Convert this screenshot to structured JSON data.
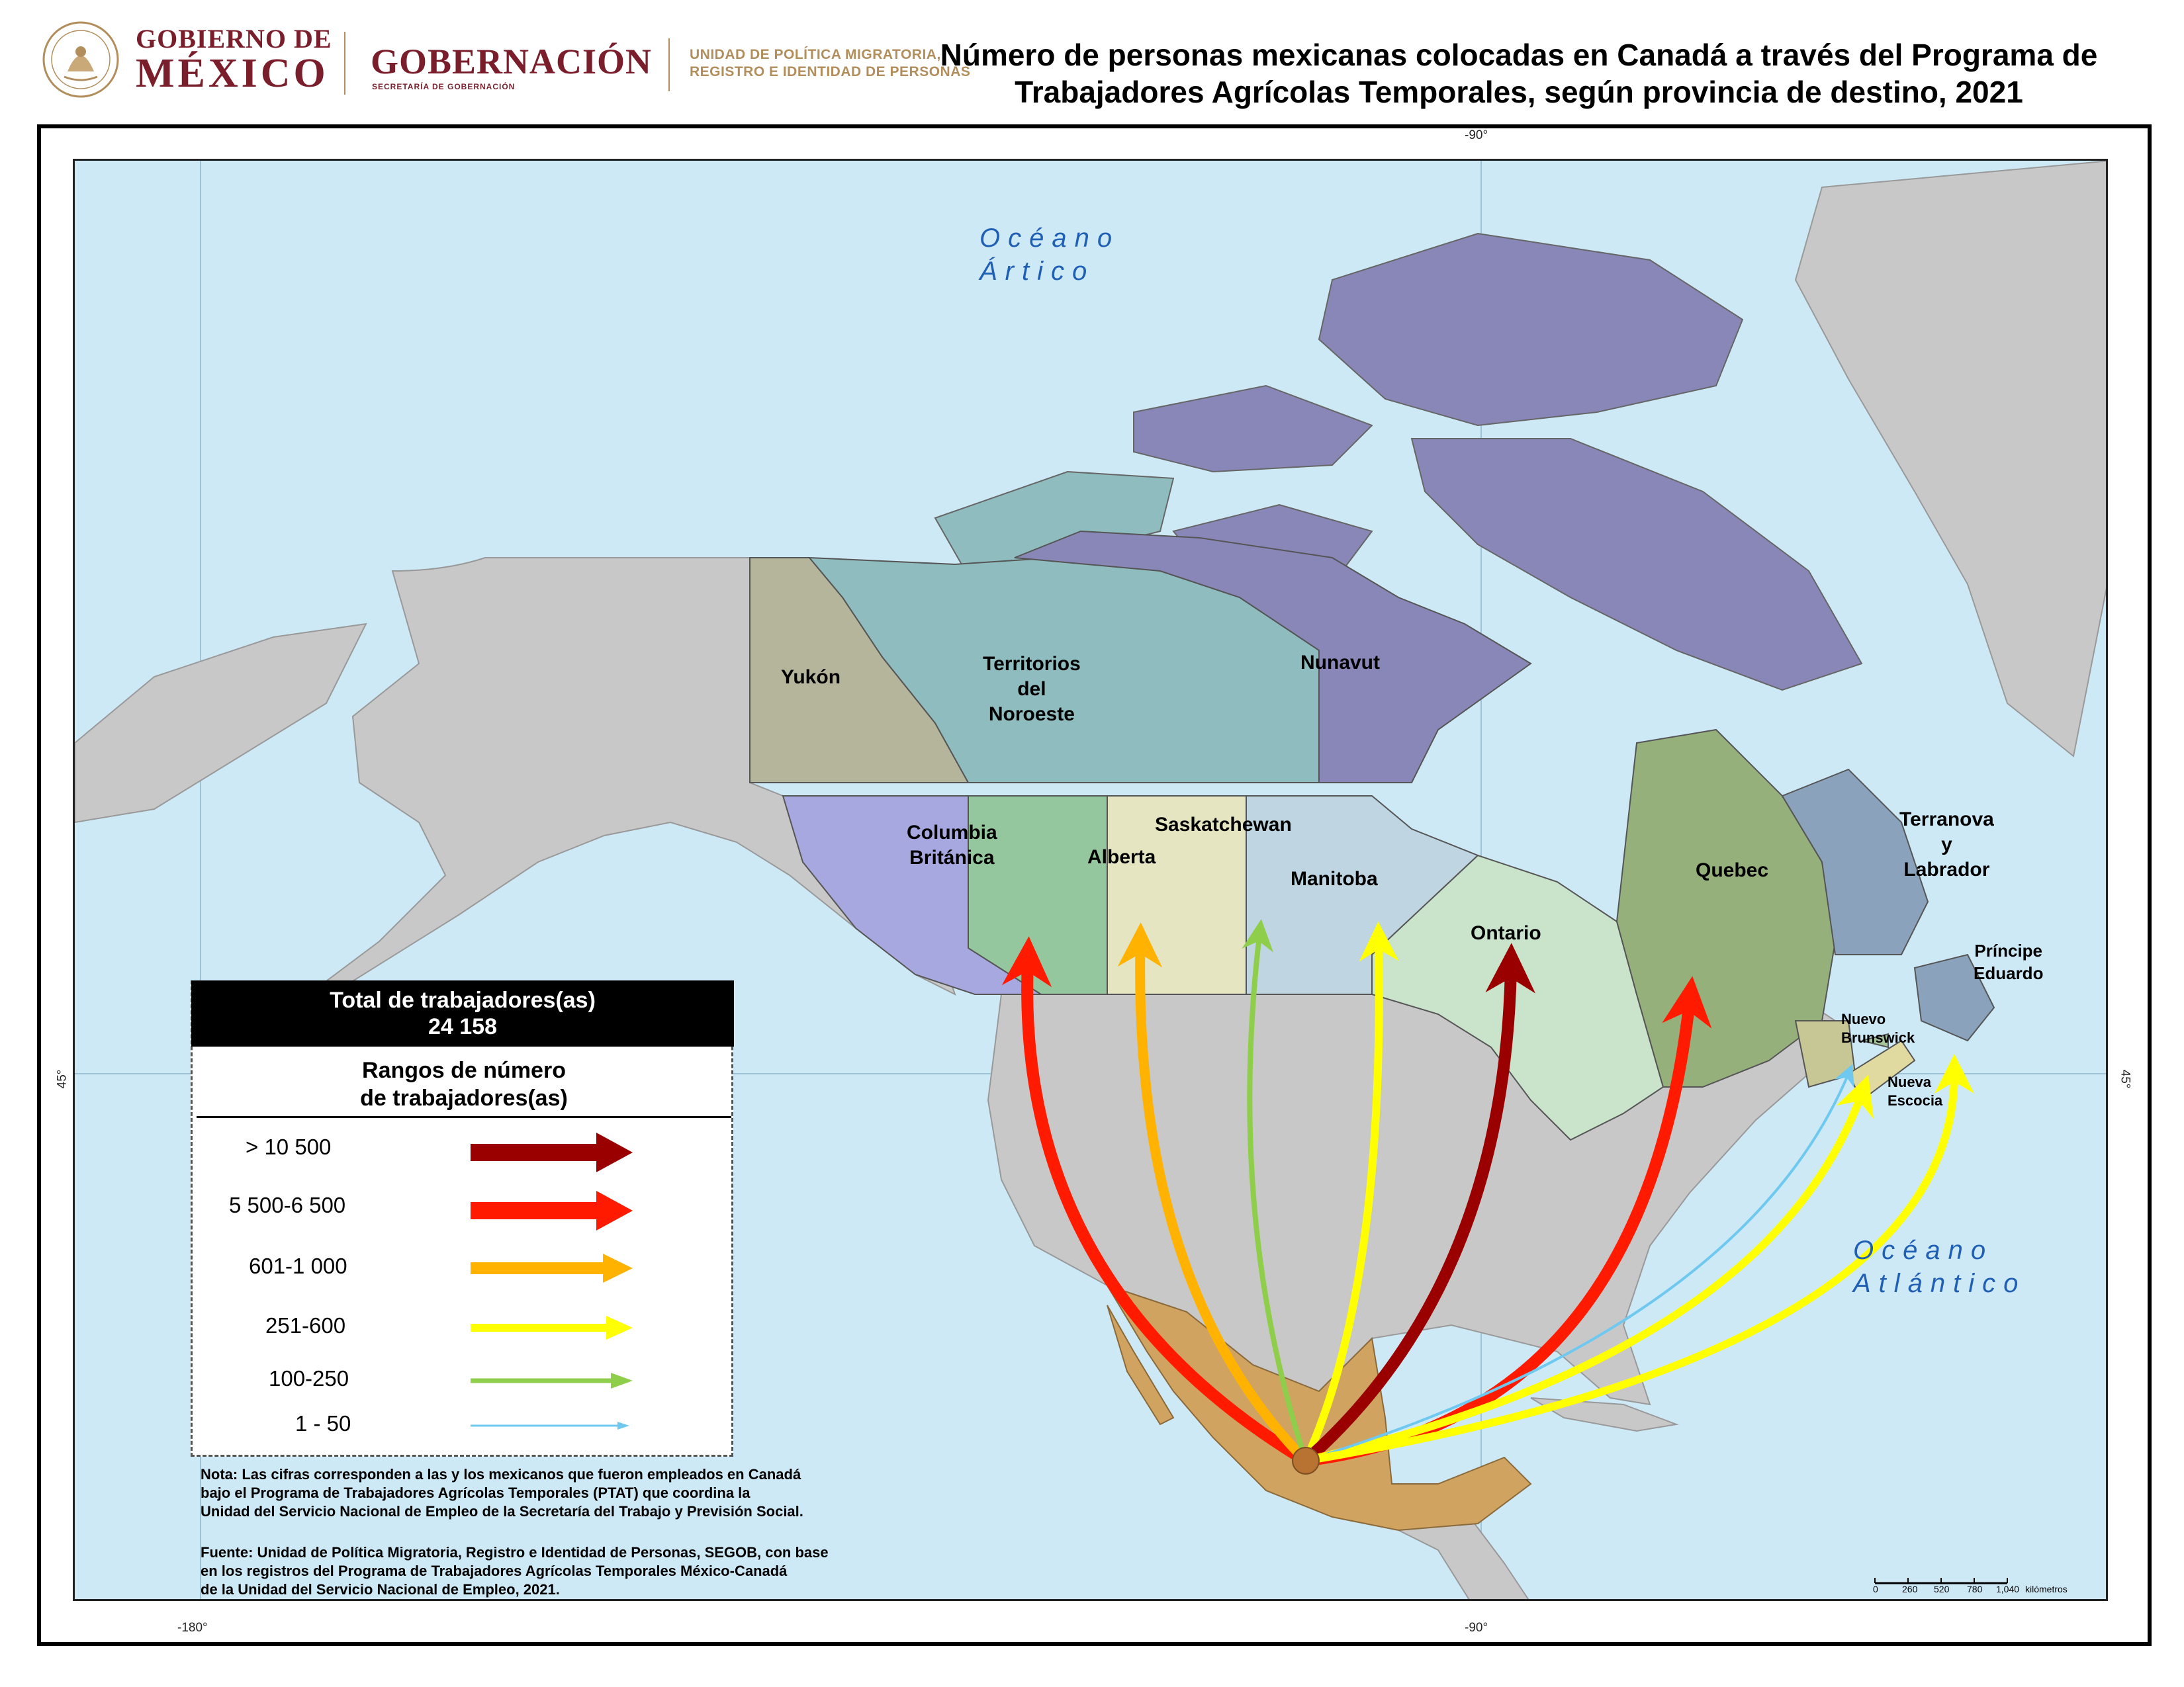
{
  "header": {
    "gob_line1": "GOBIERNO DE",
    "gob_line2": "MÉXICO",
    "gobernacion": "GOBERNACIÓN",
    "secretaria": "SECRETARÍA DE GOBERNACIÓN",
    "unidad_line1": "UNIDAD DE POLÍTICA MIGRATORIA,",
    "unidad_line2": "REGISTRO E IDENTIDAD DE PERSONAS",
    "title_line1": "Número de personas mexicanas colocadas en Canadá a través del Programa de",
    "title_line2": "Trabajadores Agrícolas Temporales, según provincia de destino, 2021"
  },
  "coords": {
    "top_lon": "-90°",
    "bottom_lon_left": "-180°",
    "bottom_lon_right": "-90°",
    "left_lat": "45°",
    "right_lat": "45°"
  },
  "oceans": {
    "artico_1": "Océano",
    "artico_2": "Ártico",
    "atlantico_1": "Océano",
    "atlantico_2": "Atlántico"
  },
  "provinces": {
    "yukon": "Yukón",
    "tno_1": "Territorios",
    "tno_2": "del",
    "tno_3": "Noroeste",
    "nunavut": "Nunavut",
    "bc_1": "Columbia",
    "bc_2": "Británica",
    "alberta": "Alberta",
    "saskatchewan": "Saskatchewan",
    "manitoba": "Manitoba",
    "ontario": "Ontario",
    "quebec": "Quebec",
    "nl_1": "Terranova",
    "nl_2": "y",
    "nl_3": "Labrador",
    "pei_1": "Príncipe",
    "pei_2": "Eduardo",
    "nb_1": "Nuevo",
    "nb_2": "Brunswick",
    "ns_1": "Nueva",
    "ns_2": "Escocia"
  },
  "colors": {
    "range_gt_10500": "#9b0000",
    "range_5500_6500": "#ff1a00",
    "range_601_1000": "#ffb300",
    "range_251_600": "#ffff00",
    "range_100_250": "#8fce4a",
    "range_1_50": "#6ec8f0",
    "ocean": "#cde9f6",
    "mexico": "#d1a361",
    "other_land": "#c8c8c8"
  },
  "legend": {
    "total_label": "Total de trabajadores(as)",
    "total_value": "24 158",
    "ranges_title_1": "Rangos de número",
    "ranges_title_2": "de trabajadores(as)",
    "items": [
      {
        "label": ">    10 500"
      },
      {
        "label": "5 500-6 500"
      },
      {
        "label": "601-1 000"
      },
      {
        "label": "251-600"
      },
      {
        "label": "100-250"
      },
      {
        "label": "1 - 50"
      }
    ]
  },
  "flows": [
    {
      "destination": "Columbia Británica",
      "range": "5 500-6 500"
    },
    {
      "destination": "Alberta",
      "range": "601-1 000"
    },
    {
      "destination": "Saskatchewan",
      "range": "100-250"
    },
    {
      "destination": "Manitoba",
      "range": "251-600"
    },
    {
      "destination": "Ontario",
      "range": "> 10 500"
    },
    {
      "destination": "Quebec",
      "range": "5 500-6 500"
    },
    {
      "destination": "Nuevo Brunswick",
      "range": "251-600"
    },
    {
      "destination": "Nueva Escocia",
      "range": "1 - 50"
    },
    {
      "destination": "Isla del Príncipe Eduardo",
      "range": "251-600"
    }
  ],
  "note": {
    "nota_1": "Nota: Las cifras corresponden a las y los mexicanos que fueron empleados en Canadá",
    "nota_2": "bajo el Programa de Trabajadores Agrícolas Temporales (PTAT) que coordina la",
    "nota_3": "Unidad del Servicio Nacional de Empleo de la Secretaría del Trabajo y Previsión Social.",
    "fuente_1": "Fuente: Unidad de Política Migratoria, Registro e Identidad de Personas, SEGOB, con base",
    "fuente_2": "en los registros del Programa de Trabajadores Agrícolas Temporales México-Canadá",
    "fuente_3": "de la Unidad del Servicio Nacional de Empleo, 2021."
  },
  "scale": {
    "ticks": [
      "0",
      "260",
      "520",
      "780",
      "1,040"
    ],
    "unit": "kilómetros"
  }
}
